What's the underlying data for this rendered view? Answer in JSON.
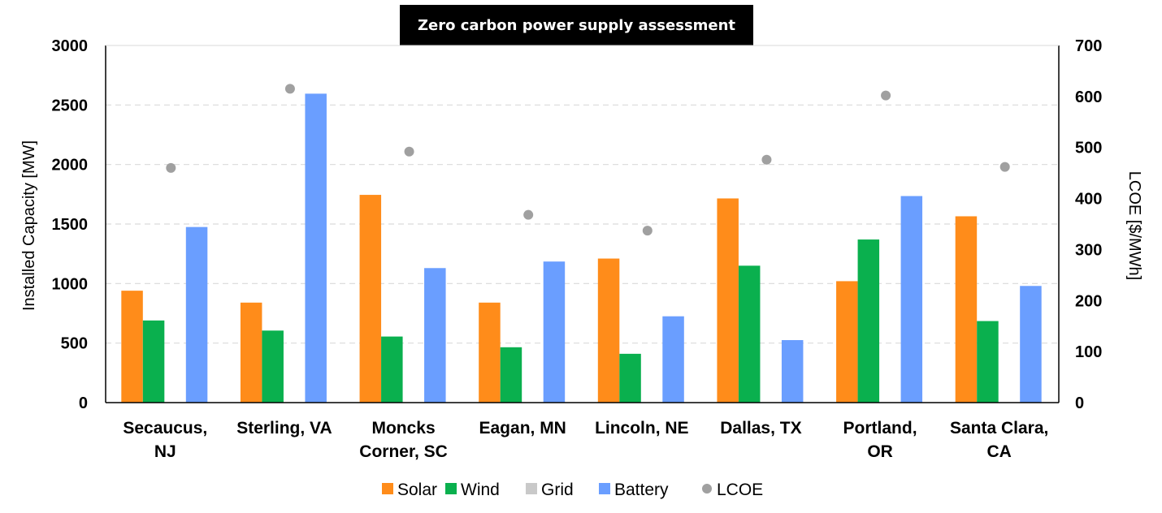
{
  "chart_data": {
    "type": "bar",
    "title": "Zero carbon power supply assessment",
    "categories": [
      [
        "Secaucus,",
        "NJ"
      ],
      [
        "Sterling, VA"
      ],
      [
        "Moncks",
        "Corner, SC"
      ],
      [
        "Eagan, MN"
      ],
      [
        "Lincoln, NE"
      ],
      [
        "Dallas, TX"
      ],
      [
        "Portland,",
        "OR"
      ],
      [
        "Santa Clara,",
        "CA"
      ]
    ],
    "series": [
      {
        "name": "Solar",
        "color": "#FF8C1A",
        "axis": "left",
        "values": [
          940,
          840,
          1745,
          840,
          1210,
          1715,
          1020,
          1565
        ]
      },
      {
        "name": "Wind",
        "color": "#0AB04E",
        "axis": "left",
        "values": [
          690,
          605,
          555,
          465,
          410,
          1150,
          1370,
          685
        ]
      },
      {
        "name": "Grid",
        "color": "#C9C9C9",
        "axis": "left",
        "values": [
          0,
          0,
          0,
          0,
          0,
          0,
          0,
          0
        ]
      },
      {
        "name": "Battery",
        "color": "#6A9EFF",
        "axis": "left",
        "values": [
          1475,
          2595,
          1130,
          1185,
          725,
          525,
          1735,
          980
        ]
      },
      {
        "name": "LCOE",
        "color": "#A0A0A0",
        "axis": "right",
        "marker": "dot",
        "values": [
          460,
          615,
          492,
          368,
          337,
          476,
          602,
          462
        ]
      }
    ],
    "ylabel": "Installed Capacity [MW]",
    "ylim": [
      0,
      3000
    ],
    "yticks": [
      "0",
      "500",
      "1000",
      "1500",
      "2000",
      "2500",
      "3000"
    ],
    "y2label": "LCOE [$/MWh]",
    "y2lim": [
      0,
      700
    ],
    "y2ticks": [
      "0",
      "100",
      "200",
      "300",
      "400",
      "500",
      "600",
      "700"
    ],
    "grid": "horizontal dashed",
    "legend_position": "bottom"
  }
}
